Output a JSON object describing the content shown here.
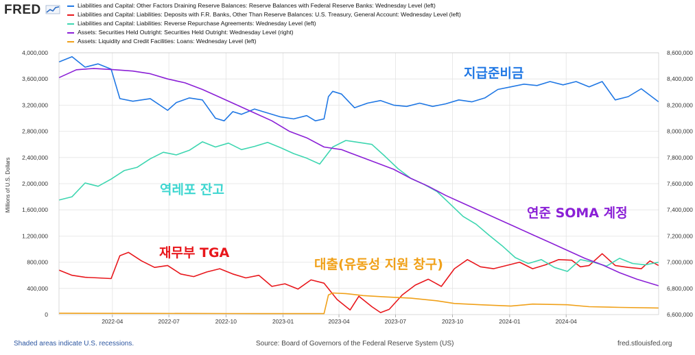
{
  "header": {
    "logo_text": "FRED",
    "logo_icon": "fred-chart-icon"
  },
  "legend": [
    {
      "label": "Liabilities and Capital: Other Factors Draining Reserve Balances: Reserve Balances with Federal Reserve Banks: Wednesday Level (left)",
      "color": "#1f77e4"
    },
    {
      "label": "Liabilities and Capital: Liabilities: Deposits with F.R. Banks, Other Than Reserve Balances: U.S. Treasury, General Account: Wednesday Level (left)",
      "color": "#e8161b"
    },
    {
      "label": "Liabilities and Capital: Liabilities: Reverse Repurchase Agreements: Wednesday Level (left)",
      "color": "#3dd6b0"
    },
    {
      "label": "Assets: Securities Held Outright: Securities Held Outright: Wednesday Level (right)",
      "color": "#8a1fd6"
    },
    {
      "label": "Assets: Liquidity and Credit Facilities: Loans: Wednesday Level (left)",
      "color": "#f0a018"
    }
  ],
  "annotations": [
    {
      "text": "지급준비금",
      "color": "#1f77e4"
    },
    {
      "text": "역레포 잔고",
      "color": "#3dd6d0"
    },
    {
      "text": "연준 SOMA 계정",
      "color": "#8a1fd6"
    },
    {
      "text": "재무부 TGA",
      "color": "#e8161b"
    },
    {
      "text": "대출(유동성 지원 창구)",
      "color": "#f0a018"
    }
  ],
  "footer": {
    "left": "Shaded areas indicate U.S. recessions.",
    "center": "Source: Board of Governors of the Federal Reserve System (US)",
    "right": "fred.stlouisfed.org"
  },
  "chart_data": {
    "type": "line",
    "ylabel_left": "Millions of U.S. Dollars",
    "ylim_left": [
      0,
      4000000
    ],
    "yticks_left": [
      "0",
      "400,000",
      "800,000",
      "1,200,000",
      "1,600,000",
      "2,000,000",
      "2,400,000",
      "2,800,000",
      "3,200,000",
      "3,600,000",
      "4,000,000"
    ],
    "ylim_right": [
      6600000,
      8600000
    ],
    "yticks_right": [
      "6,600,000",
      "6,800,000",
      "7,000,000",
      "7,200,000",
      "7,400,000",
      "7,600,000",
      "7,800,000",
      "8,000,000",
      "8,200,000",
      "8,400,000",
      "8,600,000"
    ],
    "xlim": [
      "2022-01-05",
      "2024-08-28"
    ],
    "xticks": [
      "2022-04",
      "2022-07",
      "2022-10",
      "2023-01",
      "2023-04",
      "2023-07",
      "2023-10",
      "2024-01",
      "2024-04"
    ],
    "grid": true,
    "legend_position": "top",
    "series": [
      {
        "name": "Liabilities and Capital: Other Factors Draining Reserve Balances: Reserve Balances with Federal Reserve Banks: Wednesday Level (left)",
        "axis": "left",
        "color": "#1f77e4",
        "x": [
          "2022-01-05",
          "2022-01-26",
          "2022-02-16",
          "2022-03-09",
          "2022-03-30",
          "2022-04-13",
          "2022-05-04",
          "2022-06-01",
          "2022-06-29",
          "2022-07-13",
          "2022-08-03",
          "2022-08-24",
          "2022-09-14",
          "2022-09-28",
          "2022-10-12",
          "2022-10-26",
          "2022-11-16",
          "2022-12-07",
          "2022-12-28",
          "2023-01-18",
          "2023-02-08",
          "2023-02-22",
          "2023-03-08",
          "2023-03-15",
          "2023-03-22",
          "2023-04-05",
          "2023-04-26",
          "2023-05-17",
          "2023-06-07",
          "2023-06-28",
          "2023-07-19",
          "2023-08-09",
          "2023-08-30",
          "2023-09-20",
          "2023-10-11",
          "2023-11-01",
          "2023-11-22",
          "2023-12-13",
          "2024-01-03",
          "2024-01-24",
          "2024-02-14",
          "2024-03-06",
          "2024-03-27",
          "2024-04-17",
          "2024-05-08",
          "2024-05-29",
          "2024-06-19",
          "2024-07-10",
          "2024-07-31",
          "2024-08-28"
        ],
        "y": [
          3860000,
          3940000,
          3780000,
          3830000,
          3750000,
          3300000,
          3260000,
          3300000,
          3120000,
          3240000,
          3310000,
          3280000,
          3000000,
          2960000,
          3100000,
          3060000,
          3140000,
          3080000,
          3020000,
          2990000,
          3040000,
          2960000,
          2990000,
          3330000,
          3410000,
          3370000,
          3160000,
          3230000,
          3270000,
          3200000,
          3180000,
          3230000,
          3180000,
          3220000,
          3280000,
          3250000,
          3310000,
          3440000,
          3480000,
          3520000,
          3500000,
          3560000,
          3510000,
          3560000,
          3480000,
          3560000,
          3280000,
          3330000,
          3450000,
          3250000
        ]
      },
      {
        "name": "Liabilities and Capital: Liabilities: Deposits with F.R. Banks, Other Than Reserve Balances: U.S. Treasury, General Account: Wednesday Level (left)",
        "axis": "left",
        "color": "#e8161b",
        "x": [
          "2022-01-05",
          "2022-01-26",
          "2022-02-16",
          "2022-03-09",
          "2022-03-30",
          "2022-04-13",
          "2022-04-27",
          "2022-05-18",
          "2022-06-08",
          "2022-06-29",
          "2022-07-20",
          "2022-08-10",
          "2022-08-31",
          "2022-09-21",
          "2022-10-12",
          "2022-11-02",
          "2022-11-23",
          "2022-12-14",
          "2023-01-04",
          "2023-01-25",
          "2023-02-15",
          "2023-03-08",
          "2023-03-29",
          "2023-04-19",
          "2023-05-03",
          "2023-05-24",
          "2023-06-07",
          "2023-06-21",
          "2023-07-12",
          "2023-08-02",
          "2023-08-23",
          "2023-09-13",
          "2023-10-04",
          "2023-10-25",
          "2023-11-15",
          "2023-12-06",
          "2023-12-27",
          "2024-01-17",
          "2024-02-07",
          "2024-02-28",
          "2024-03-20",
          "2024-04-10",
          "2024-04-24",
          "2024-05-08",
          "2024-05-29",
          "2024-06-19",
          "2024-07-10",
          "2024-07-31",
          "2024-08-14",
          "2024-08-28"
        ],
        "y": [
          680000,
          600000,
          570000,
          560000,
          550000,
          900000,
          950000,
          820000,
          720000,
          750000,
          620000,
          580000,
          650000,
          700000,
          620000,
          560000,
          600000,
          430000,
          470000,
          390000,
          530000,
          480000,
          230000,
          70000,
          280000,
          120000,
          30000,
          80000,
          300000,
          450000,
          540000,
          430000,
          700000,
          840000,
          730000,
          700000,
          750000,
          800000,
          700000,
          760000,
          840000,
          830000,
          730000,
          750000,
          930000,
          750000,
          720000,
          700000,
          820000,
          750000
        ]
      },
      {
        "name": "Liabilities and Capital: Liabilities: Reverse Repurchase Agreements: Wednesday Level (left)",
        "axis": "left",
        "color": "#3dd6b0",
        "x": [
          "2022-01-05",
          "2022-01-26",
          "2022-02-16",
          "2022-03-09",
          "2022-03-30",
          "2022-04-20",
          "2022-05-11",
          "2022-06-01",
          "2022-06-22",
          "2022-07-13",
          "2022-08-03",
          "2022-08-24",
          "2022-09-14",
          "2022-10-05",
          "2022-10-26",
          "2022-11-16",
          "2022-12-07",
          "2022-12-28",
          "2023-01-18",
          "2023-02-08",
          "2023-03-01",
          "2023-03-22",
          "2023-04-12",
          "2023-05-03",
          "2023-05-24",
          "2023-06-14",
          "2023-07-05",
          "2023-07-26",
          "2023-08-16",
          "2023-09-06",
          "2023-09-27",
          "2023-10-18",
          "2023-11-08",
          "2023-11-29",
          "2023-12-20",
          "2024-01-10",
          "2024-01-31",
          "2024-02-21",
          "2024-03-13",
          "2024-04-03",
          "2024-04-24",
          "2024-05-15",
          "2024-06-05",
          "2024-06-26",
          "2024-07-17",
          "2024-08-07",
          "2024-08-28"
        ],
        "y": [
          1750000,
          1800000,
          2010000,
          1960000,
          2070000,
          2200000,
          2250000,
          2380000,
          2480000,
          2440000,
          2510000,
          2640000,
          2560000,
          2620000,
          2520000,
          2570000,
          2630000,
          2550000,
          2460000,
          2390000,
          2300000,
          2560000,
          2660000,
          2630000,
          2600000,
          2420000,
          2230000,
          2080000,
          1990000,
          1880000,
          1690000,
          1500000,
          1380000,
          1210000,
          1050000,
          870000,
          780000,
          840000,
          720000,
          660000,
          840000,
          800000,
          740000,
          860000,
          780000,
          760000,
          800000
        ]
      },
      {
        "name": "Assets: Securities Held Outright: Securities Held Outright: Wednesday Level (right)",
        "axis": "right",
        "color": "#8a1fd6",
        "x": [
          "2022-01-05",
          "2022-02-02",
          "2022-03-02",
          "2022-04-06",
          "2022-05-04",
          "2022-06-01",
          "2022-06-29",
          "2022-07-27",
          "2022-08-24",
          "2022-09-21",
          "2022-10-19",
          "2022-11-16",
          "2022-12-14",
          "2023-01-11",
          "2023-02-08",
          "2023-03-08",
          "2023-04-05",
          "2023-05-03",
          "2023-05-31",
          "2023-06-28",
          "2023-07-26",
          "2023-08-23",
          "2023-09-20",
          "2023-10-18",
          "2023-11-15",
          "2023-12-13",
          "2024-01-10",
          "2024-02-07",
          "2024-03-06",
          "2024-04-03",
          "2024-05-01",
          "2024-05-29",
          "2024-06-26",
          "2024-07-24",
          "2024-08-28"
        ],
        "y": [
          8410000,
          8470000,
          8480000,
          8470000,
          8460000,
          8440000,
          8400000,
          8370000,
          8320000,
          8260000,
          8200000,
          8140000,
          8080000,
          8000000,
          7950000,
          7880000,
          7860000,
          7810000,
          7760000,
          7710000,
          7640000,
          7580000,
          7510000,
          7450000,
          7390000,
          7330000,
          7270000,
          7210000,
          7150000,
          7090000,
          7030000,
          6980000,
          6920000,
          6870000,
          6820000
        ]
      },
      {
        "name": "Assets: Liquidity and Credit Facilities: Loans: Wednesday Level (left)",
        "axis": "left",
        "color": "#f0a018",
        "x": [
          "2022-01-05",
          "2022-06-01",
          "2022-10-05",
          "2023-01-04",
          "2023-03-08",
          "2023-03-15",
          "2023-03-22",
          "2023-04-12",
          "2023-05-10",
          "2023-06-14",
          "2023-07-26",
          "2023-09-06",
          "2023-10-04",
          "2023-11-15",
          "2024-01-03",
          "2024-02-07",
          "2024-04-03",
          "2024-05-08",
          "2024-06-26",
          "2024-08-28"
        ],
        "y": [
          20000,
          18000,
          16000,
          15000,
          15000,
          300000,
          330000,
          320000,
          290000,
          270000,
          250000,
          210000,
          170000,
          150000,
          130000,
          160000,
          150000,
          120000,
          110000,
          100000
        ]
      }
    ]
  }
}
